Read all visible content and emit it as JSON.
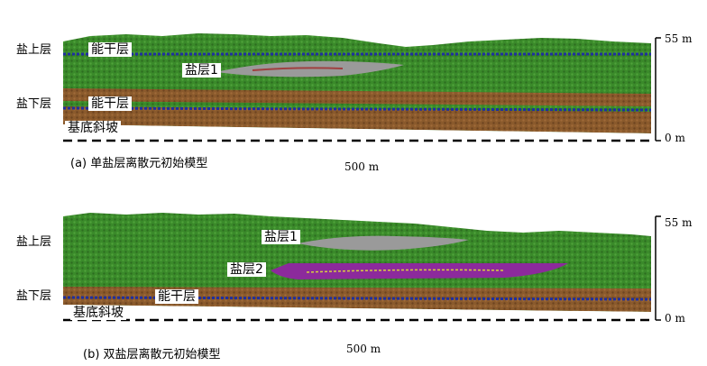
{
  "colors": {
    "overburden": "#3a8a2a",
    "overburden_dark": "#2d6d20",
    "subsalt": "#8a5a2c",
    "subsalt_dark": "#6e4420",
    "competent_layer": "#1f2fa0",
    "salt_1": "#9a9a9a",
    "salt_2": "#8c2a9c",
    "salt_2_marker": "#d8d040",
    "salt_1_core": "#a04040",
    "basement_line": "#000000"
  },
  "panel_a": {
    "labels": {
      "salt_upper": "盐上层",
      "salt_lower": "盐下层",
      "competent_upper": "能干层",
      "competent_lower": "能干层",
      "salt_1": "盐层1",
      "basement_slope": "基底斜坡"
    },
    "scale_top": "55 m",
    "scale_bottom": "0 m",
    "x_scale": "500 m",
    "caption": "(a)  单盐层离散元初始模型"
  },
  "panel_b": {
    "labels": {
      "salt_upper": "盐上层",
      "salt_lower": "盐下层",
      "competent": "能干层",
      "salt_1": "盐层1",
      "salt_2": "盐层2",
      "basement_slope": "基底斜坡"
    },
    "scale_top": "55 m",
    "scale_bottom": "0 m",
    "x_scale": "500 m",
    "caption": "(b)  双盐层离散元初始模型"
  }
}
